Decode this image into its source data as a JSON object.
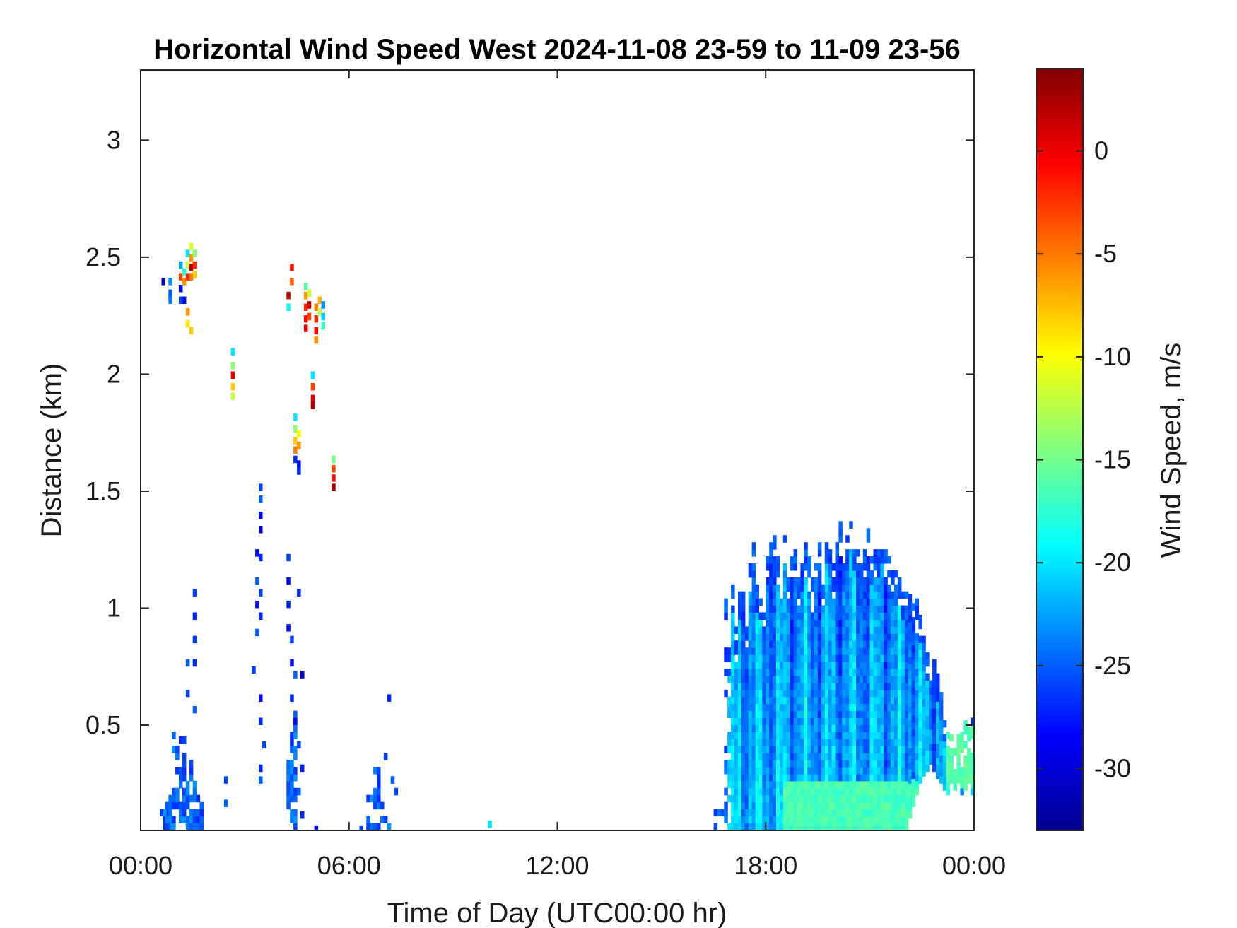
{
  "chart_data": {
    "type": "heatmap",
    "title": "Horizontal Wind Speed West 2024-11-08 23-59 to 11-09 23-56",
    "xlabel": "Time of Day (UTC00:00 hr)",
    "ylabel": "Distance (km)",
    "colorbar_label": "Wind Speed, m/s",
    "x_units": "hours",
    "xlim": [
      0,
      24
    ],
    "ylim": [
      0.05,
      3.3
    ],
    "x_ticks": [
      0,
      6,
      12,
      18,
      24
    ],
    "x_tick_labels": [
      "00:00",
      "06:00",
      "12:00",
      "18:00",
      "00:00"
    ],
    "y_ticks": [
      0.5,
      1,
      1.5,
      2,
      2.5,
      3
    ],
    "y_tick_labels": [
      "0.5",
      "1",
      "1.5",
      "2",
      "2.5",
      "3"
    ],
    "colorbar_range": [
      -33,
      4
    ],
    "colorbar_ticks": [
      0,
      -5,
      -10,
      -15,
      -20,
      -25,
      -30
    ],
    "colorbar_tick_labels": [
      "0",
      "-5",
      "-10",
      "-15",
      "-20",
      "-25",
      "-30"
    ],
    "colormap": "jet",
    "grid": false,
    "bins": {
      "dt_hours": 0.1,
      "dz_km": 0.03
    },
    "cells": [
      [
        0.6,
        2.38,
        -31
      ],
      [
        0.8,
        2.38,
        -23
      ],
      [
        0.8,
        2.33,
        -25
      ],
      [
        0.8,
        2.3,
        -24
      ],
      [
        1.1,
        2.45,
        -22
      ],
      [
        1.1,
        2.4,
        -3
      ],
      [
        1.1,
        2.35,
        -28
      ],
      [
        1.1,
        2.3,
        -26
      ],
      [
        1.2,
        2.42,
        -18
      ],
      [
        1.2,
        2.38,
        -6
      ],
      [
        1.2,
        2.3,
        -28
      ],
      [
        1.3,
        2.5,
        -20
      ],
      [
        1.3,
        2.45,
        -12
      ],
      [
        1.3,
        2.4,
        -2
      ],
      [
        1.3,
        2.25,
        -6
      ],
      [
        1.3,
        2.2,
        -9
      ],
      [
        1.4,
        2.53,
        -11
      ],
      [
        1.4,
        2.48,
        -6
      ],
      [
        1.4,
        2.44,
        2
      ],
      [
        1.4,
        2.4,
        -5
      ],
      [
        1.4,
        2.17,
        -8
      ],
      [
        1.5,
        2.5,
        -14
      ],
      [
        1.5,
        2.45,
        -2
      ],
      [
        1.5,
        2.41,
        -8
      ],
      [
        2.6,
        2.08,
        -20
      ],
      [
        2.6,
        2.02,
        -14
      ],
      [
        2.6,
        1.98,
        0
      ],
      [
        2.6,
        1.93,
        -8
      ],
      [
        2.6,
        1.89,
        -12
      ],
      [
        4.3,
        2.44,
        -1
      ],
      [
        4.3,
        2.38,
        -4
      ],
      [
        4.2,
        2.32,
        2
      ],
      [
        4.2,
        2.27,
        -19
      ],
      [
        4.7,
        2.36,
        -16
      ],
      [
        4.7,
        2.32,
        -6
      ],
      [
        4.7,
        2.27,
        -2
      ],
      [
        4.7,
        2.22,
        -1
      ],
      [
        4.7,
        2.18,
        0
      ],
      [
        4.8,
        2.33,
        -12
      ],
      [
        4.8,
        2.28,
        1
      ],
      [
        4.8,
        2.23,
        -3
      ],
      [
        5.0,
        2.27,
        -5
      ],
      [
        5.0,
        2.22,
        -2
      ],
      [
        5.0,
        2.17,
        -1
      ],
      [
        5.0,
        2.13,
        -6
      ],
      [
        5.1,
        2.3,
        -7
      ],
      [
        5.1,
        2.25,
        -12
      ],
      [
        5.2,
        2.28,
        -23
      ],
      [
        5.2,
        2.23,
        -21
      ],
      [
        5.2,
        2.19,
        -17
      ],
      [
        4.9,
        1.98,
        -20
      ],
      [
        4.9,
        1.93,
        -3
      ],
      [
        4.9,
        1.88,
        0
      ],
      [
        4.9,
        1.85,
        2
      ],
      [
        4.4,
        1.8,
        -20
      ],
      [
        4.4,
        1.75,
        -14
      ],
      [
        4.4,
        1.7,
        -8
      ],
      [
        4.4,
        1.66,
        -5
      ],
      [
        4.4,
        1.62,
        -27
      ],
      [
        4.5,
        1.73,
        -10
      ],
      [
        4.5,
        1.68,
        -6
      ],
      [
        4.5,
        1.6,
        -28
      ],
      [
        4.5,
        1.57,
        -27
      ],
      [
        5.5,
        1.62,
        -15
      ],
      [
        5.5,
        1.58,
        -3
      ],
      [
        5.5,
        1.54,
        -1
      ],
      [
        5.5,
        1.5,
        3
      ],
      [
        3.4,
        1.5,
        -26
      ],
      [
        3.4,
        1.45,
        -25
      ],
      [
        3.4,
        1.38,
        -28
      ],
      [
        3.4,
        1.32,
        -30
      ],
      [
        3.3,
        1.22,
        -28
      ],
      [
        3.4,
        1.2,
        -27
      ],
      [
        3.3,
        1.1,
        -25
      ],
      [
        3.4,
        1.05,
        -26
      ],
      [
        3.3,
        1.0,
        -28
      ],
      [
        3.4,
        0.95,
        -27
      ],
      [
        3.3,
        0.88,
        -25
      ],
      [
        3.2,
        0.72,
        -26
      ],
      [
        3.4,
        0.6,
        -28
      ],
      [
        3.4,
        0.5,
        -27
      ],
      [
        3.5,
        0.4,
        -26
      ],
      [
        3.4,
        0.3,
        -27
      ],
      [
        3.4,
        0.25,
        -25
      ],
      [
        4.2,
        1.2,
        -26
      ],
      [
        4.2,
        1.1,
        -28
      ],
      [
        4.2,
        1.0,
        -27
      ],
      [
        4.2,
        0.9,
        -28
      ],
      [
        4.3,
        0.85,
        -26
      ],
      [
        4.5,
        1.05,
        -27
      ],
      [
        4.3,
        0.75,
        -28
      ],
      [
        4.4,
        0.7,
        -25
      ],
      [
        4.6,
        0.7,
        -30
      ],
      [
        4.3,
        0.6,
        -27
      ],
      [
        4.4,
        0.5,
        -28
      ],
      [
        4.5,
        0.4,
        -26
      ],
      [
        4.6,
        0.3,
        -27
      ],
      [
        4.5,
        0.2,
        -25
      ],
      [
        4.6,
        0.1,
        -27
      ],
      [
        1.5,
        1.05,
        -26
      ],
      [
        1.5,
        0.95,
        -27
      ],
      [
        1.5,
        0.85,
        -26
      ],
      [
        1.3,
        0.75,
        -25
      ],
      [
        1.5,
        0.75,
        -27
      ],
      [
        1.3,
        0.62,
        -26
      ],
      [
        1.5,
        0.55,
        -25
      ],
      [
        1.1,
        0.42,
        -27
      ],
      [
        1.2,
        0.42,
        -26
      ],
      [
        2.4,
        0.25,
        -26
      ],
      [
        2.4,
        0.15,
        -25
      ],
      [
        7.1,
        0.6,
        -27
      ],
      [
        7.0,
        0.35,
        -26
      ],
      [
        7.2,
        0.25,
        -25
      ],
      [
        7.3,
        0.2,
        -26
      ],
      [
        10.0,
        0.06,
        -20
      ],
      [
        6.3,
        0.04,
        -26
      ],
      [
        5.0,
        0.04,
        -28
      ]
    ],
    "regions": [
      {
        "t0": 0.55,
        "t1": 0.9,
        "z0": 0.05,
        "z1": 0.15,
        "top": [
          0.12,
          0.15,
          0.14,
          0.12
        ],
        "v": -26
      },
      {
        "t0": 0.7,
        "t1": 1.2,
        "z0": 0.05,
        "z1": 0.47,
        "top": [
          0.2,
          0.47,
          0.4,
          0.35,
          0.3
        ],
        "v": -26
      },
      {
        "t0": 1.2,
        "t1": 1.9,
        "z0": 0.05,
        "z1": 0.38,
        "top": [
          0.38,
          0.3,
          0.35,
          0.25,
          0.2,
          0.15,
          0.1
        ],
        "v": -25
      },
      {
        "t0": 4.2,
        "t1": 4.5,
        "z0": 0.05,
        "z1": 0.65,
        "top": [
          0.45,
          0.55,
          0.65
        ],
        "v": -27
      },
      {
        "t0": 6.5,
        "t1": 7.2,
        "z0": 0.05,
        "z1": 0.35,
        "top": [
          0.2,
          0.35,
          0.3,
          0.15,
          0.1,
          0.08,
          0.07
        ],
        "v": -25
      },
      {
        "t0": 16.5,
        "t1": 24.0,
        "z0": 0.05,
        "z1": 1.35,
        "v": -21
      }
    ],
    "profile": [
      [
        16.7,
        0.12
      ],
      [
        16.8,
        1.1
      ],
      [
        16.9,
        0.8
      ],
      [
        17.0,
        1.1
      ],
      [
        17.1,
        0.9
      ],
      [
        17.2,
        1.05
      ],
      [
        17.3,
        1.1
      ],
      [
        17.4,
        0.9
      ],
      [
        17.5,
        1.2
      ],
      [
        17.6,
        1.3
      ],
      [
        17.7,
        1.1
      ],
      [
        17.8,
        1.05
      ],
      [
        17.9,
        0.95
      ],
      [
        18.0,
        1.2
      ],
      [
        18.1,
        1.32
      ],
      [
        18.2,
        1.3
      ],
      [
        18.3,
        1.22
      ],
      [
        18.4,
        1.15
      ],
      [
        18.5,
        1.3
      ],
      [
        18.6,
        1.1
      ],
      [
        18.7,
        1.2
      ],
      [
        18.8,
        1.25
      ],
      [
        18.9,
        1.1
      ],
      [
        19.0,
        1.18
      ],
      [
        19.1,
        1.27
      ],
      [
        19.2,
        1.2
      ],
      [
        19.3,
        1.1
      ],
      [
        19.4,
        1.25
      ],
      [
        19.5,
        1.28
      ],
      [
        19.6,
        1.12
      ],
      [
        19.7,
        1.3
      ],
      [
        19.8,
        1.25
      ],
      [
        19.9,
        1.18
      ],
      [
        20.0,
        1.32
      ],
      [
        20.1,
        1.35
      ],
      [
        20.2,
        1.2
      ],
      [
        20.3,
        1.28
      ],
      [
        20.4,
        1.35
      ],
      [
        20.5,
        1.25
      ],
      [
        20.6,
        1.3
      ],
      [
        20.7,
        1.18
      ],
      [
        20.8,
        1.25
      ],
      [
        20.9,
        1.32
      ],
      [
        21.0,
        1.2
      ],
      [
        21.1,
        1.25
      ],
      [
        21.2,
        1.22
      ],
      [
        21.3,
        1.3
      ],
      [
        21.4,
        1.25
      ],
      [
        21.5,
        1.2
      ],
      [
        21.6,
        1.15
      ],
      [
        21.7,
        1.2
      ],
      [
        21.8,
        1.12
      ],
      [
        21.9,
        1.05
      ],
      [
        22.0,
        1.1
      ],
      [
        22.1,
        1.05
      ],
      [
        22.2,
        1.0
      ],
      [
        22.3,
        1.02
      ],
      [
        22.4,
        0.95
      ],
      [
        22.5,
        0.88
      ],
      [
        22.6,
        0.8
      ],
      [
        22.7,
        0.72
      ],
      [
        22.8,
        0.78
      ],
      [
        22.9,
        0.7
      ],
      [
        23.0,
        0.62
      ],
      [
        23.1,
        0.55
      ],
      [
        23.2,
        0.5
      ],
      [
        23.3,
        0.47
      ],
      [
        23.4,
        0.45
      ],
      [
        23.5,
        0.5
      ],
      [
        23.6,
        0.45
      ],
      [
        23.7,
        0.5
      ],
      [
        23.8,
        0.47
      ],
      [
        23.9,
        0.52
      ],
      [
        24.0,
        0.55
      ]
    ],
    "bottom_profile": [
      [
        22.0,
        0.05
      ],
      [
        22.1,
        0.1
      ],
      [
        22.2,
        0.15
      ],
      [
        22.3,
        0.2
      ],
      [
        22.4,
        0.25
      ],
      [
        22.5,
        0.28
      ],
      [
        22.6,
        0.3
      ],
      [
        22.7,
        0.33
      ],
      [
        22.8,
        0.3
      ],
      [
        22.9,
        0.27
      ],
      [
        23.0,
        0.25
      ],
      [
        23.1,
        0.22
      ],
      [
        23.2,
        0.2
      ],
      [
        23.3,
        0.25
      ],
      [
        23.4,
        0.22
      ],
      [
        23.5,
        0.25
      ],
      [
        23.6,
        0.2
      ],
      [
        23.7,
        0.22
      ],
      [
        23.8,
        0.25
      ],
      [
        23.9,
        0.2
      ],
      [
        24.0,
        0.2
      ]
    ]
  }
}
